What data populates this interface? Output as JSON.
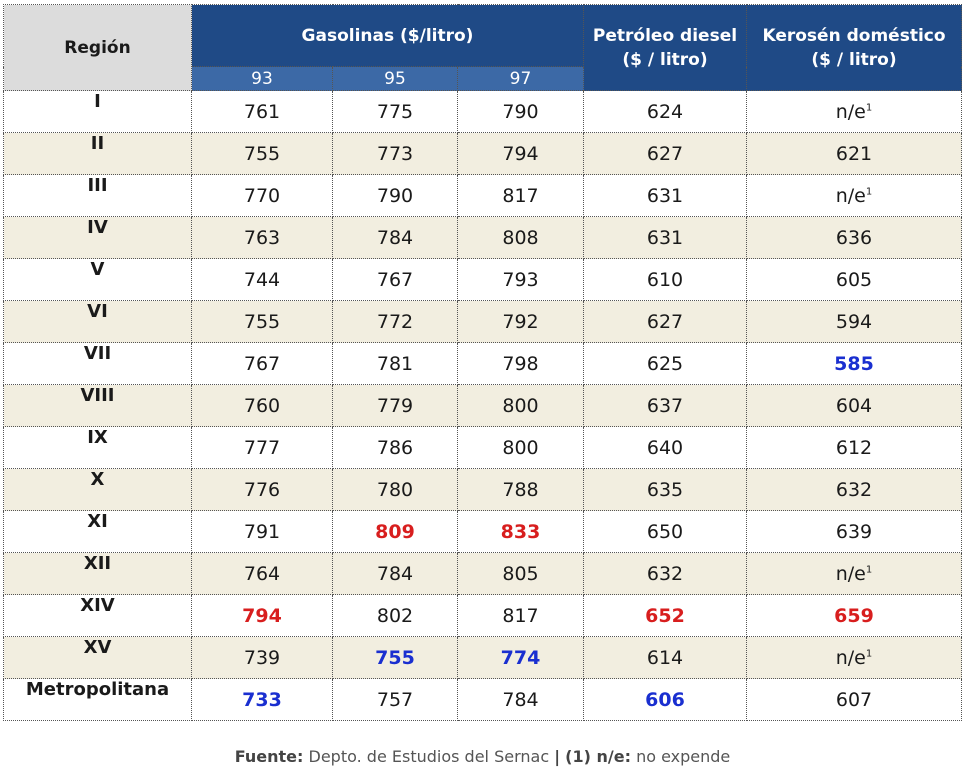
{
  "headers": {
    "region": "Región",
    "gasolinas": "Gasolinas ($/litro)",
    "octanes": [
      "93",
      "95",
      "97"
    ],
    "diesel": [
      "Petróleo diesel",
      "($ / litro)"
    ],
    "kerosen": [
      "Kerosén doméstico",
      "($ / litro)"
    ]
  },
  "rows": [
    {
      "region": "I",
      "g93": "761",
      "g95": "775",
      "g97": "790",
      "diesel": "624",
      "kerosen": "n/e",
      "kerosen_sup": "1"
    },
    {
      "region": "II",
      "g93": "755",
      "g95": "773",
      "g97": "794",
      "diesel": "627",
      "kerosen": "621"
    },
    {
      "region": "III",
      "g93": "770",
      "g95": "790",
      "g97": "817",
      "diesel": "631",
      "kerosen": "n/e",
      "kerosen_sup": "1"
    },
    {
      "region": "IV",
      "g93": "763",
      "g95": "784",
      "g97": "808",
      "diesel": "631",
      "kerosen": "636"
    },
    {
      "region": "V",
      "g93": "744",
      "g95": "767",
      "g97": "793",
      "diesel": "610",
      "kerosen": "605"
    },
    {
      "region": "VI",
      "g93": "755",
      "g95": "772",
      "g97": "792",
      "diesel": "627",
      "kerosen": "594"
    },
    {
      "region": "VII",
      "g93": "767",
      "g95": "781",
      "g97": "798",
      "diesel": "625",
      "kerosen": "585",
      "lo": [
        "kerosen"
      ]
    },
    {
      "region": "VIII",
      "g93": "760",
      "g95": "779",
      "g97": "800",
      "diesel": "637",
      "kerosen": "604"
    },
    {
      "region": "IX",
      "g93": "777",
      "g95": "786",
      "g97": "800",
      "diesel": "640",
      "kerosen": "612"
    },
    {
      "region": "X",
      "g93": "776",
      "g95": "780",
      "g97": "788",
      "diesel": "635",
      "kerosen": "632"
    },
    {
      "region": "XI",
      "g93": "791",
      "g95": "809",
      "g97": "833",
      "diesel": "650",
      "kerosen": "639",
      "hi": [
        "g95",
        "g97"
      ]
    },
    {
      "region": "XII",
      "g93": "764",
      "g95": "784",
      "g97": "805",
      "diesel": "632",
      "kerosen": "n/e",
      "kerosen_sup": "1"
    },
    {
      "region": "XIV",
      "g93": "794",
      "g95": "802",
      "g97": "817",
      "diesel": "652",
      "kerosen": "659",
      "hi": [
        "g93",
        "diesel",
        "kerosen"
      ]
    },
    {
      "region": "XV",
      "g93": "739",
      "g95": "755",
      "g97": "774",
      "diesel": "614",
      "kerosen": "n/e",
      "kerosen_sup": "1",
      "lo": [
        "g95",
        "g97"
      ]
    },
    {
      "region": "Metropolitana",
      "g93": "733",
      "g95": "757",
      "g97": "784",
      "diesel": "606",
      "kerosen": "607",
      "lo": [
        "g93",
        "diesel"
      ]
    }
  ],
  "colors": {
    "highest": "#d81e1e",
    "lowest": "#1a2fd0"
  },
  "footer": {
    "source_label": "Fuente:",
    "source_text": "Depto. de Estudios  del Sernac",
    "separator": "|",
    "note_label": "(1) n/e:",
    "note_text": "no expende"
  }
}
